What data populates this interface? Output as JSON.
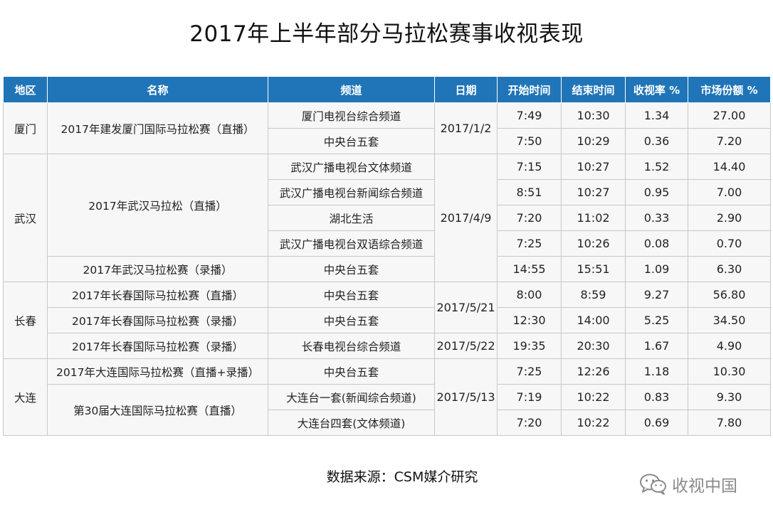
{
  "title": "2017年上半年部分马拉松赛事收视表现",
  "table": {
    "headers": [
      "地区",
      "名称",
      "频道",
      "日期",
      "开始时间",
      "结束时间",
      "收视率 %",
      "市场份额 %"
    ],
    "regions": [
      "厦门",
      "武汉",
      "长春",
      "大连"
    ],
    "names": [
      "2017年建发厦门国际马拉松赛（直播）",
      "2017年武汉马拉松（直播）",
      "2017年武汉马拉松赛（录播）",
      "2017年长春国际马拉松赛（直播）",
      "2017年长春国际马拉松赛（录播）",
      "2017年长春国际马拉松赛（录播）",
      "2017年大连国际马拉松赛（直播+录播）",
      "第30届大连国际马拉松赛（直播）"
    ],
    "dates": [
      "2017/1/2",
      "2017/4/9",
      "2017/5/21",
      "2017/5/22",
      "2017/5/13"
    ],
    "rows": [
      {
        "channel": "厦门电视台综合频道",
        "start": "7:49",
        "end": "10:30",
        "rating": "1.34",
        "share": "27.00"
      },
      {
        "channel": "中央台五套",
        "start": "7:50",
        "end": "10:29",
        "rating": "0.36",
        "share": "7.20"
      },
      {
        "channel": "武汉广播电视台文体频道",
        "start": "7:15",
        "end": "10:27",
        "rating": "1.52",
        "share": "14.40"
      },
      {
        "channel": "武汉广播电视台新闻综合频道",
        "start": "8:51",
        "end": "10:27",
        "rating": "0.95",
        "share": "7.00"
      },
      {
        "channel": "湖北生活",
        "start": "7:20",
        "end": "11:02",
        "rating": "0.33",
        "share": "2.90"
      },
      {
        "channel": "武汉广播电视台双语综合频道",
        "start": "7:25",
        "end": "10:26",
        "rating": "0.08",
        "share": "0.70"
      },
      {
        "channel": "中央台五套",
        "start": "14:55",
        "end": "15:51",
        "rating": "1.09",
        "share": "6.30"
      },
      {
        "channel": "中央台五套",
        "start": "8:00",
        "end": "8:59",
        "rating": "9.27",
        "share": "56.80"
      },
      {
        "channel": "中央台五套",
        "start": "12:30",
        "end": "14:00",
        "rating": "5.25",
        "share": "34.50"
      },
      {
        "channel": "长春电视台综合频道",
        "start": "19:35",
        "end": "20:30",
        "rating": "1.67",
        "share": "4.90"
      },
      {
        "channel": "中央台五套",
        "start": "7:25",
        "end": "12:26",
        "rating": "1.18",
        "share": "10.30"
      },
      {
        "channel": "大连台一套(新闻综合频道)",
        "start": "7:19",
        "end": "10:22",
        "rating": "0.83",
        "share": "9.30"
      },
      {
        "channel": "大连台四套(文体频道)",
        "start": "7:20",
        "end": "10:22",
        "rating": "0.69",
        "share": "7.80"
      }
    ]
  },
  "source": "数据来源：CSM媒介研究",
  "watermark": {
    "text": "收视中国",
    "icon": "wechat-icon"
  },
  "colors": {
    "header_bg": "#1f75b8",
    "header_text": "#ffffff",
    "cell_bg": "#f7f7f7",
    "border": "#c8c8c8"
  }
}
